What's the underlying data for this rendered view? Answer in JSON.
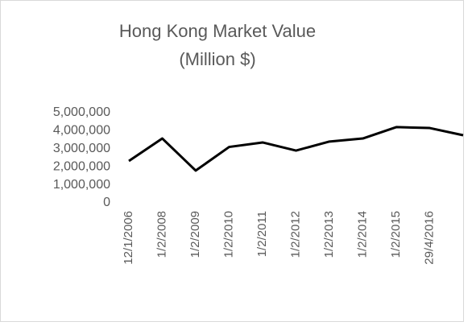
{
  "chart_data": {
    "type": "line",
    "title": [
      "Hong Kong Market Value",
      "(Million $)"
    ],
    "categories": [
      "12/1/2006",
      "1/2/2008",
      "1/2/2009",
      "1/2/2010",
      "1/2/2011",
      "1/2/2012",
      "1/2/2013",
      "1/2/2014",
      "1/2/2015",
      "29/4/2016",
      null
    ],
    "series": [
      {
        "name": "Hong Kong Market Value",
        "color": "#000000",
        "values": [
          2320000,
          3570000,
          1790000,
          3100000,
          3350000,
          2900000,
          3400000,
          3570000,
          4200000,
          4150000,
          3750000
        ]
      }
    ],
    "ylim": [
      0,
      5000000
    ],
    "yticks": [
      {
        "value": 0,
        "label": "0"
      },
      {
        "value": 1000000,
        "label": "1,000,000"
      },
      {
        "value": 2000000,
        "label": "2,000,000"
      },
      {
        "value": 3000000,
        "label": "3,000,000"
      },
      {
        "value": 4000000,
        "label": "4,000,000"
      },
      {
        "value": 5000000,
        "label": "5,000,000"
      }
    ],
    "grid": false
  }
}
